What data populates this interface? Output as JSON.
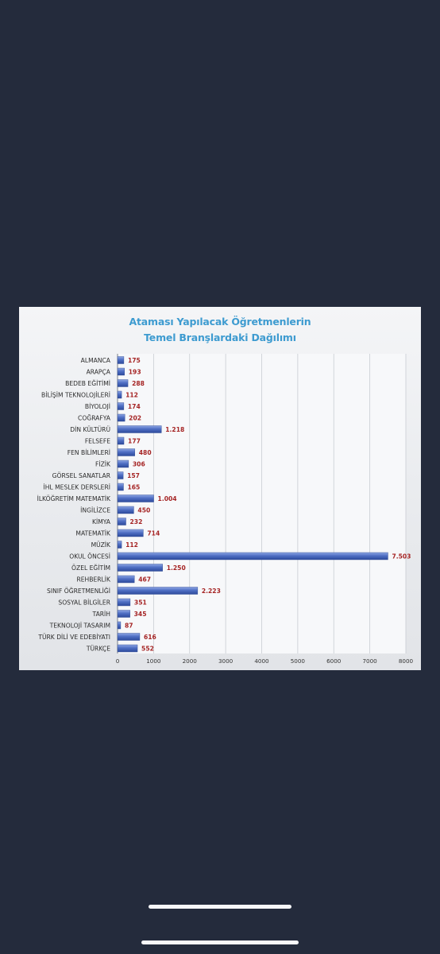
{
  "colors": {
    "background": "#242b3c",
    "title": "#3d9bd0",
    "bar": "#3f5fb6",
    "value_label": "#a52424",
    "indicator": "#f7f7f9"
  },
  "chart_data": {
    "type": "bar",
    "orientation": "horizontal",
    "title_lines": [
      "Ataması Yapılacak Öğretmenlerin",
      "Temel Branşlardaki Dağılımı"
    ],
    "xlabel": "",
    "ylabel": "",
    "xlim": [
      0,
      8000
    ],
    "x_ticks": [
      0,
      1000,
      2000,
      3000,
      4000,
      5000,
      6000,
      7000,
      8000
    ],
    "x_tick_labels": [
      "0",
      "1000",
      "2000",
      "3000",
      "4000",
      "5000",
      "6000",
      "7000",
      "8000"
    ],
    "grid": true,
    "legend": "none",
    "categories": [
      "ALMANCA",
      "ARAPÇA",
      "BEDEB EĞİTİMİ",
      "BİLİŞİM TEKNOLOJİLERİ",
      "BİYOLOJİ",
      "COĞRAFYA",
      "DİN KÜLTÜRÜ",
      "FELSEFE",
      "FEN BİLİMLERİ",
      "FİZİK",
      "GÖRSEL SANATLAR",
      "İHL MESLEK DERSLERİ",
      "İLKÖĞRETİM MATEMATİK",
      "İNGİLİZCE",
      "KİMYA",
      "MATEMATİK",
      "MÜZİK",
      "OKUL ÖNCESİ",
      "ÖZEL EĞİTİM",
      "REHBERLİK",
      "SINIF ÖĞRETMENLİĞİ",
      "SOSYAL BİLGİLER",
      "TARİH",
      "TEKNOLOJİ TASARIM",
      "TÜRK DİLİ VE EDEBİYATI",
      "TÜRKÇE"
    ],
    "values": [
      175,
      193,
      288,
      112,
      174,
      202,
      1218,
      177,
      480,
      306,
      157,
      165,
      1004,
      450,
      232,
      714,
      112,
      7503,
      1250,
      467,
      2223,
      351,
      345,
      87,
      616,
      552
    ],
    "value_labels": [
      "175",
      "193",
      "288",
      "112",
      "174",
      "202",
      "1.218",
      "177",
      "480",
      "306",
      "157",
      "165",
      "1.004",
      "450",
      "232",
      "714",
      "112",
      "7.503",
      "1.250",
      "467",
      "2.223",
      "351",
      "345",
      "87",
      "616",
      "552"
    ]
  }
}
